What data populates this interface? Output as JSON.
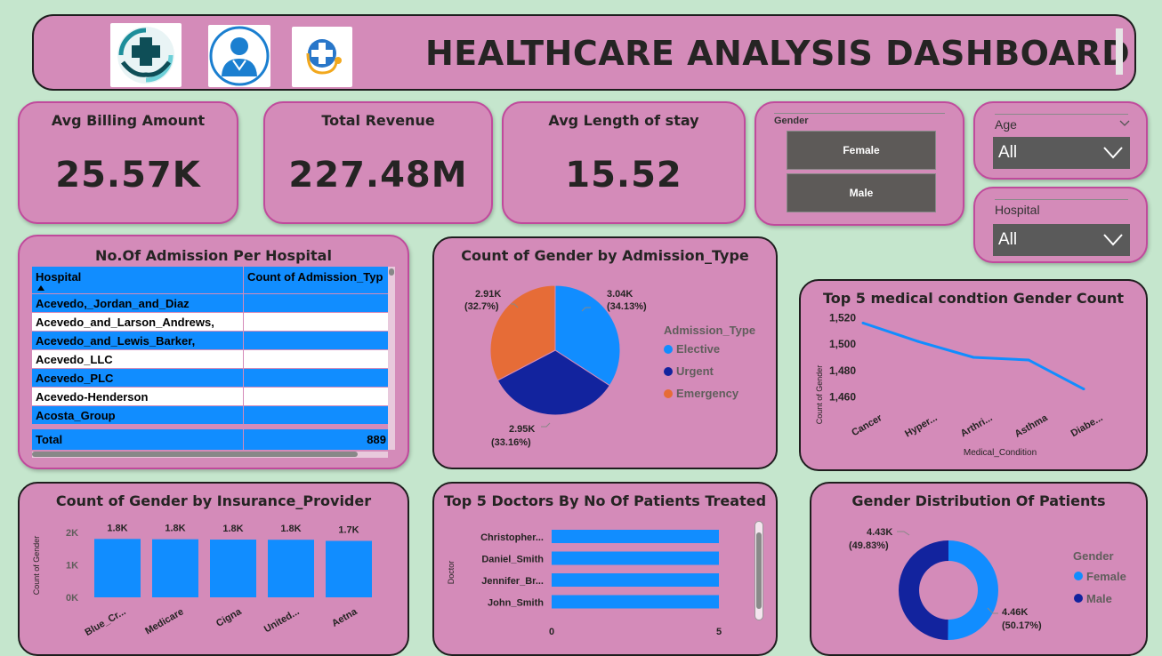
{
  "header": {
    "title": "HEALTHCARE ANALYSIS DASHBOARD",
    "logos": [
      "hands-cross-icon",
      "doctor-icon",
      "stethoscope-cross-icon"
    ]
  },
  "kpis": [
    {
      "label": "Avg Billing Amount",
      "value": "25.57K"
    },
    {
      "label": "Total Revenue",
      "value": "227.48M"
    },
    {
      "label": "Avg Length of stay",
      "value": "15.52"
    }
  ],
  "gender_slicer": {
    "label": "Gender",
    "options": [
      "Female",
      "Male"
    ]
  },
  "age_slicer": {
    "label": "Age",
    "value": "All"
  },
  "hospital_slicer": {
    "label": "Hospital",
    "value": "All"
  },
  "admission_table": {
    "title": "No.Of Admission Per Hospital",
    "columns": [
      "Hospital",
      "Count of Admission_Typ"
    ],
    "rows": [
      "Acevedo,_Jordan_and_Diaz",
      "Acevedo_and_Larson_Andrews,",
      "Acevedo_and_Lewis_Barker,",
      "Acevedo_LLC",
      "Acevedo_PLC",
      "Acevedo-Henderson",
      "Acosta_Group"
    ],
    "total_label": "Total",
    "total_value": "889"
  },
  "admission_pie": {
    "title": "Count of Gender by Admission_Type",
    "legend_title": "Admission_Type",
    "labels": [
      {
        "value": "3.04K",
        "pct": "(34.13%)"
      },
      {
        "value": "2.95K",
        "pct": "(33.16%)"
      },
      {
        "value": "2.91K",
        "pct": "(32.7%)"
      }
    ]
  },
  "condition_chart": {
    "title": "Top 5 medical condtion Gender Count",
    "ylabel": "Count of Gender",
    "xlabel": "Medical_Condition",
    "yticks": [
      "1,520",
      "1,500",
      "1,480",
      "1,460"
    ],
    "xticks": [
      "Cancer",
      "Hyper...",
      "Arthri...",
      "Asthma",
      "Diabe..."
    ]
  },
  "insurance_chart": {
    "title": "Count of Gender by Insurance_Provider",
    "ylabel": "Count of Gender",
    "yticks": [
      "2K",
      "1K",
      "0K"
    ],
    "xticks": [
      "Blue_Cr...",
      "Medicare",
      "Cigna",
      "United...",
      "Aetna"
    ],
    "data_labels": [
      "1.8K",
      "1.8K",
      "1.8K",
      "1.8K",
      "1.7K"
    ]
  },
  "doctors_chart": {
    "title": "Top 5 Doctors By No Of Patients Treated",
    "ylabel": "Doctor",
    "xticks": [
      "0",
      "5"
    ],
    "categories": [
      "Christopher...",
      "Daniel_Smith",
      "Jennifer_Br...",
      "John_Smith"
    ]
  },
  "gender_donut": {
    "title": "Gender Distribution Of Patients",
    "legend_title": "Gender",
    "labels": [
      {
        "value": "4.46K",
        "pct": "(50.17%)"
      },
      {
        "value": "4.43K",
        "pct": "(49.83%)"
      }
    ]
  },
  "chart_data": [
    {
      "type": "pie",
      "title": "Count of Gender by Admission_Type",
      "categories": [
        "Elective",
        "Urgent",
        "Emergency"
      ],
      "values": [
        3040,
        2950,
        2910
      ],
      "colors": [
        "#118dff",
        "#12239e",
        "#e66c37"
      ],
      "legend": "right"
    },
    {
      "type": "line",
      "title": "Top 5 medical condtion Gender Count",
      "categories": [
        "Cancer",
        "Hyper...",
        "Arthri...",
        "Asthma",
        "Diabe..."
      ],
      "values": [
        1516,
        1502,
        1490,
        1488,
        1466
      ],
      "ylim": [
        1455,
        1525
      ],
      "xlabel": "Medical_Condition",
      "ylabel": "Count of Gender"
    },
    {
      "type": "bar",
      "title": "Count of Gender by Insurance_Provider",
      "categories": [
        "Blue_Cr...",
        "Medicare",
        "Cigna",
        "United...",
        "Aetna"
      ],
      "values": [
        1800,
        1790,
        1780,
        1775,
        1740
      ],
      "ylim": [
        0,
        2000
      ],
      "ylabel": "Count of Gender"
    },
    {
      "type": "bar",
      "title": "Top 5 Doctors By No Of Patients Treated",
      "orientation": "horizontal",
      "categories": [
        "Christopher...",
        "Daniel_Smith",
        "Jennifer_Br...",
        "John_Smith"
      ],
      "values": [
        5,
        5,
        5,
        5
      ],
      "xlim": [
        0,
        5
      ],
      "ylabel": "Doctor"
    },
    {
      "type": "pie",
      "title": "Gender Distribution Of Patients",
      "categories": [
        "Female",
        "Male"
      ],
      "values": [
        4460,
        4430
      ],
      "colors": [
        "#118dff",
        "#12239e"
      ],
      "legend": "right"
    }
  ]
}
